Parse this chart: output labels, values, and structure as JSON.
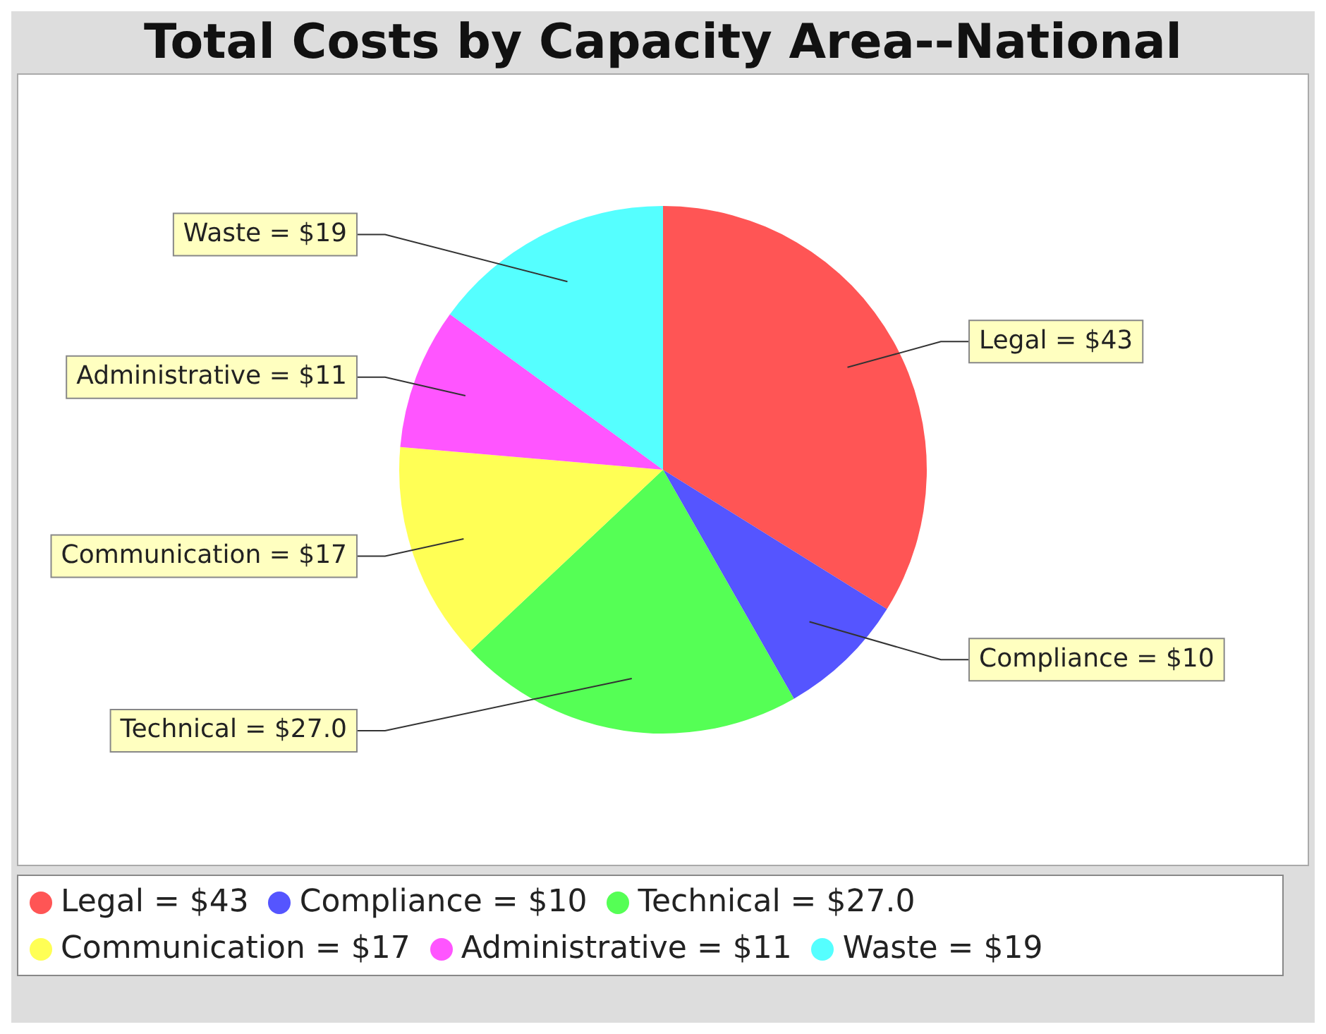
{
  "chart_data": {
    "type": "pie",
    "title": "Total Costs by Capacity Area--National",
    "categories": [
      "Legal = $43",
      "Compliance = $10",
      "Technical = $27.0",
      "Communication = $17",
      "Administrative = $11",
      "Waste = $19"
    ],
    "values": [
      43,
      10,
      27.0,
      17,
      11,
      19
    ],
    "colors": [
      "#ff5555",
      "#5555ff",
      "#55ff55",
      "#ffff55",
      "#ff55ff",
      "#55ffff"
    ],
    "legend": "bottom"
  }
}
